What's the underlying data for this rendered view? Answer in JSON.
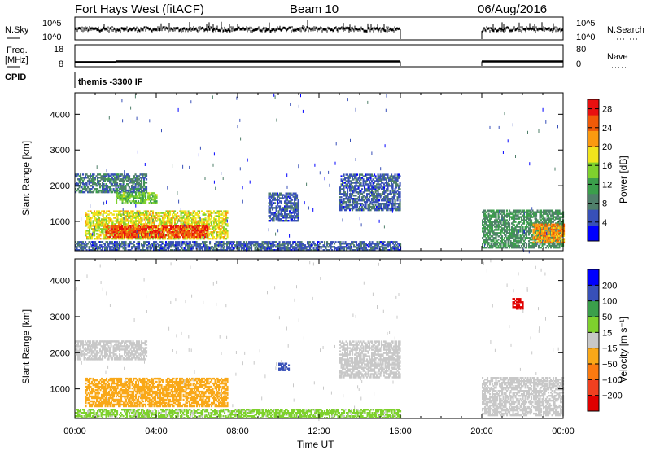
{
  "header": {
    "station": "Fort Hays West (fitACF)",
    "beam": "Beam 10",
    "date": "06/Aug/2016"
  },
  "noise_panel": {
    "left_label": "N.Sky",
    "left_ticks": [
      "10^5",
      "10^0"
    ],
    "right_label": "N.Search",
    "right_ticks": [
      "10^5",
      "10^0"
    ]
  },
  "freq_panel": {
    "left_label_1": "Freq.",
    "left_label_2": "[MHz]",
    "left_ticks": [
      "18",
      "8"
    ],
    "right_label": "Nave",
    "right_ticks": [
      "80",
      "0"
    ]
  },
  "cpid": {
    "label": "CPID",
    "program": "themis -3300 IF"
  },
  "chart_data": [
    {
      "type": "line",
      "panel": "noise",
      "series": [
        {
          "name": "N.Sky"
        },
        {
          "name": "N.Search"
        }
      ],
      "data_gaps_ut": [
        [
          16.0,
          20.0
        ]
      ],
      "note_scale": "log"
    },
    {
      "type": "line",
      "panel": "frequency",
      "series": [
        {
          "name": "Freq.",
          "x": [
            0,
            2,
            4,
            8,
            12,
            16,
            20,
            24
          ],
          "values": [
            10.0,
            10.5,
            10.5,
            10.5,
            10.5,
            10.5,
            10.5,
            10.5
          ]
        }
      ],
      "data_gaps_ut": [
        [
          16.0,
          20.0
        ]
      ]
    },
    {
      "type": "heatmap",
      "panel": "power",
      "ylabel": "Slant Range [km]",
      "xlabel": "Time UT",
      "ylim": [
        180,
        4600
      ],
      "xlim": [
        0,
        24
      ],
      "y_ticks": [
        "1000",
        "2000",
        "3000",
        "4000"
      ],
      "colorbar": {
        "label": "Power [dB]",
        "ticks": [
          "28",
          "24",
          "20",
          "16",
          "12",
          "8",
          "4"
        ],
        "range": [
          0,
          30
        ],
        "colors": [
          "#0000ff",
          "#3850b8",
          "#4f7f6a",
          "#3b9f4b",
          "#7ed12d",
          "#f0e41c",
          "#fb9a10",
          "#f05a08",
          "#e81010"
        ]
      },
      "data_gaps_ut": [
        [
          16.0,
          20.0
        ]
      ],
      "features": [
        {
          "t_start": 0,
          "t_end": 16,
          "range_low": 180,
          "range_high": 450,
          "level_db": 6
        },
        {
          "t_start": 0.5,
          "t_end": 7.5,
          "range_low": 500,
          "range_high": 1300,
          "level_db": 18
        },
        {
          "t_start": 1.5,
          "t_end": 6.5,
          "range_low": 550,
          "range_high": 900,
          "level_db": 26
        },
        {
          "t_start": 0,
          "t_end": 3.5,
          "range_low": 1800,
          "range_high": 2300,
          "level_db": 8
        },
        {
          "t_start": 2,
          "t_end": 4,
          "range_low": 1500,
          "range_high": 1800,
          "level_db": 14
        },
        {
          "t_start": 9.5,
          "t_end": 11,
          "range_low": 1000,
          "range_high": 1800,
          "level_db": 6
        },
        {
          "t_start": 13,
          "t_end": 16,
          "range_low": 1300,
          "range_high": 2300,
          "level_db": 6
        },
        {
          "t_start": 20,
          "t_end": 24,
          "range_low": 250,
          "range_high": 1300,
          "level_db": 10
        },
        {
          "t_start": 22.5,
          "t_end": 24,
          "range_low": 400,
          "range_high": 900,
          "level_db": 22
        }
      ]
    },
    {
      "type": "heatmap",
      "panel": "velocity",
      "ylabel": "Slant Range [km]",
      "xlabel": "Time UT",
      "ylim": [
        180,
        4600
      ],
      "xlim": [
        0,
        24
      ],
      "y_ticks": [
        "1000",
        "2000",
        "3000",
        "4000"
      ],
      "x_ticks": [
        "00:00",
        "04:00",
        "08:00",
        "12:00",
        "16:00",
        "20:00",
        "00:00"
      ],
      "colorbar": {
        "label": "Velocity [m s⁻¹]",
        "ticks": [
          "200",
          "100",
          "50",
          "15",
          "−15",
          "−50",
          "−100",
          "−200"
        ],
        "range": [
          -250,
          250
        ],
        "colors": [
          "#e00000",
          "#f04020",
          "#fb7a10",
          "#f9a818",
          "#c8c8c8",
          "#7ed12d",
          "#3b9f4b",
          "#3850b8",
          "#0000ff"
        ]
      },
      "data_gaps_ut": [
        [
          16.0,
          20.0
        ]
      ],
      "features": [
        {
          "t_start": 0,
          "t_end": 16,
          "range_low": 180,
          "range_high": 450,
          "velocity_ms": 30
        },
        {
          "t_start": 0.5,
          "t_end": 7.5,
          "range_low": 500,
          "range_high": 1300,
          "velocity_ms": -40
        },
        {
          "t_start": 0,
          "t_end": 3.5,
          "range_low": 1800,
          "range_high": 2300,
          "velocity_ms": 0
        },
        {
          "t_start": 10,
          "t_end": 10.5,
          "range_low": 1500,
          "range_high": 1700,
          "velocity_ms": 150
        },
        {
          "t_start": 13,
          "t_end": 16,
          "range_low": 1300,
          "range_high": 2300,
          "velocity_ms": 0
        },
        {
          "t_start": 20,
          "t_end": 24,
          "range_low": 250,
          "range_high": 1300,
          "velocity_ms": 0
        },
        {
          "t_start": 21.5,
          "t_end": 22,
          "range_low": 3200,
          "range_high": 3500,
          "velocity_ms": -200
        }
      ]
    }
  ]
}
